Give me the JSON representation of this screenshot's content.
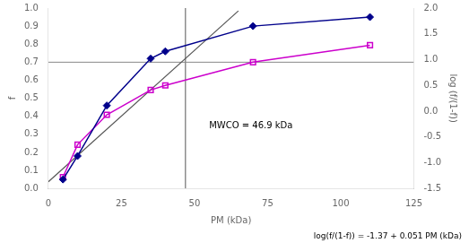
{
  "chart_data": {
    "type": "line",
    "xlabel": "PM (kDa)",
    "ylabel": "f",
    "y2label": "log (f/(1-f))",
    "annotations": [
      "MWCO = 46.9 kDa",
      "log(f/(1-f)) = -1.37 + 0.051 PM (kDa)"
    ],
    "series": [
      {
        "x": [
          5,
          10,
          20,
          35,
          40,
          70,
          110
        ],
        "values": [
          0.05,
          0.18,
          0.46,
          0.72,
          0.76,
          0.9,
          0.95
        ],
        "color": "#00008B",
        "marker": "diamond",
        "line_style": "solid",
        "axis": "y"
      },
      {
        "x": [
          5,
          10,
          20,
          35,
          40,
          70,
          110
        ],
        "values": [
          -1.28,
          -0.65,
          -0.07,
          0.41,
          0.5,
          0.95,
          1.28
        ],
        "color": "#CC00CC",
        "marker": "square_open",
        "line_style": "solid",
        "axis": "y2"
      },
      {
        "x": [
          0,
          65
        ],
        "values": [
          -1.37,
          1.945
        ],
        "color": "#555555",
        "marker": "none",
        "line_style": "solid",
        "axis": "y2"
      }
    ],
    "reference_lines": [
      {
        "orientation": "horizontal",
        "value": 0.7,
        "color": "#888888"
      },
      {
        "orientation": "vertical",
        "value": 46.9,
        "color": "#555555"
      }
    ],
    "xlim": [
      0,
      125
    ],
    "xticks": [
      0,
      25,
      50,
      75,
      100,
      125
    ],
    "ylim": [
      0,
      1
    ],
    "yticks": [
      {
        "value": 0,
        "label": "0.0"
      },
      0.1,
      0.2,
      0.3,
      0.4,
      0.5,
      0.6,
      0.7,
      0.8,
      0.9,
      {
        "value": 1,
        "label": "1.0"
      }
    ],
    "y2lim": [
      -1.5,
      2
    ],
    "y2ticks": [
      -1.5,
      {
        "value": -1,
        "label": "-1.0"
      },
      -0.5,
      {
        "value": 0,
        "label": "0.0"
      },
      0.5,
      {
        "value": 1,
        "label": "1.0"
      },
      1.5,
      {
        "value": 2,
        "label": "2.0"
      }
    ],
    "grid": false
  }
}
